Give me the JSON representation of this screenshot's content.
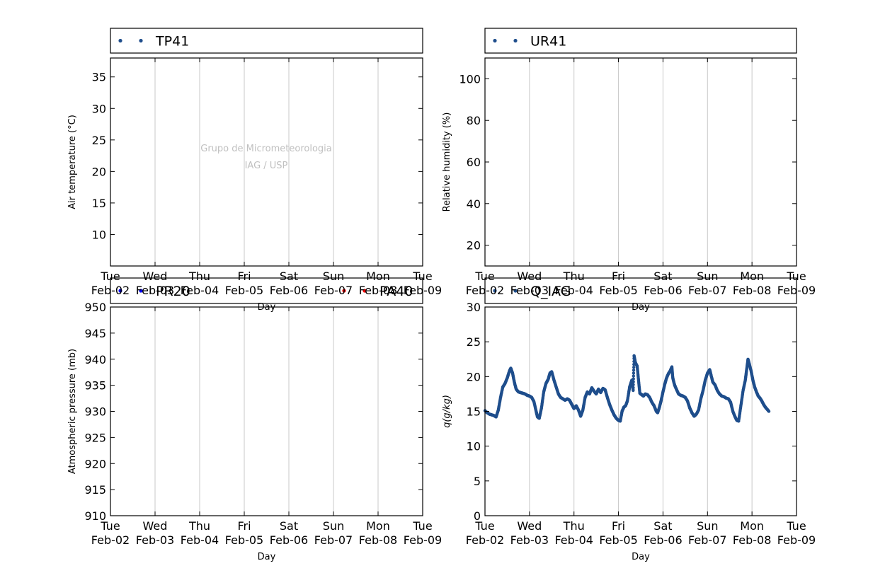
{
  "x_ticks": {
    "days": [
      "Tue",
      "Wed",
      "Thu",
      "Fri",
      "Sat",
      "Sun",
      "Mon",
      "Tue"
    ],
    "dates": [
      "Feb-02",
      "Feb-03",
      "Feb-04",
      "Feb-05",
      "Feb-06",
      "Feb-07",
      "Feb-08",
      "Feb-09"
    ]
  },
  "watermark": [
    "Grupo de Micrometeorologia",
    "IAG / USP"
  ],
  "colors": {
    "series_blue": "#1f4e8c",
    "pr20": "#0000ff",
    "pa40": "#ff0000",
    "grid": "#c8c8c8"
  },
  "chart_data": [
    {
      "type": "scatter",
      "panel": "top-left",
      "legend": [
        {
          "name": "TP41",
          "color": "#1f4e8c"
        }
      ],
      "ylabel": "Air temperature (°C)",
      "xlabel": "Day",
      "xlim": [
        "2016-02-02",
        "2016-02-09"
      ],
      "ylim": [
        5,
        38
      ],
      "yticks": [
        10,
        15,
        20,
        25,
        30,
        35
      ],
      "grid": "vertical",
      "series": [
        {
          "name": "TP41",
          "points": []
        }
      ]
    },
    {
      "type": "scatter",
      "panel": "top-right",
      "legend": [
        {
          "name": "UR41",
          "color": "#1f4e8c"
        }
      ],
      "ylabel": "Relative humidity (%)",
      "xlabel": "Day",
      "xlim": [
        "2016-02-02",
        "2016-02-09"
      ],
      "ylim": [
        10,
        110
      ],
      "yticks": [
        20,
        40,
        60,
        80,
        100
      ],
      "grid": "vertical",
      "series": [
        {
          "name": "UR41",
          "points": []
        }
      ]
    },
    {
      "type": "scatter",
      "panel": "bottom-left",
      "legend": [
        {
          "name": "PR20",
          "color": "#0000ff"
        },
        {
          "name": "PA40",
          "color": "#ff0000"
        }
      ],
      "ylabel": "Atmospheric pressure (mb)",
      "xlabel": "Day",
      "xlim": [
        "2016-02-02",
        "2016-02-09"
      ],
      "ylim": [
        910,
        950
      ],
      "yticks": [
        910,
        915,
        920,
        925,
        930,
        935,
        940,
        945,
        950
      ],
      "grid": "vertical",
      "series": [
        {
          "name": "PR20",
          "points": []
        },
        {
          "name": "PA40",
          "points": []
        }
      ]
    },
    {
      "type": "scatter",
      "panel": "bottom-right",
      "legend": [
        {
          "name": "Q_IAG",
          "color": "#1f4e8c"
        }
      ],
      "ylabel": "q(g/kg)",
      "xlabel": "Day",
      "xlim": [
        "2016-02-02",
        "2016-02-09"
      ],
      "ylim": [
        0,
        30
      ],
      "yticks": [
        0,
        5,
        10,
        15,
        20,
        25,
        30
      ],
      "grid": "vertical",
      "series": [
        {
          "name": "Q_IAG",
          "x_unit": "days since Feb-02 00:00",
          "points": [
            [
              0.0,
              15.1
            ],
            [
              0.05,
              14.8
            ],
            [
              0.1,
              14.6
            ],
            [
              0.15,
              14.5
            ],
            [
              0.2,
              14.4
            ],
            [
              0.25,
              14.2
            ],
            [
              0.3,
              15.2
            ],
            [
              0.35,
              17.0
            ],
            [
              0.4,
              18.5
            ],
            [
              0.45,
              19.0
            ],
            [
              0.5,
              19.8
            ],
            [
              0.55,
              20.8
            ],
            [
              0.58,
              21.2
            ],
            [
              0.62,
              20.5
            ],
            [
              0.66,
              19.2
            ],
            [
              0.7,
              18.2
            ],
            [
              0.75,
              17.8
            ],
            [
              0.8,
              17.7
            ],
            [
              0.85,
              17.6
            ],
            [
              0.9,
              17.5
            ],
            [
              0.95,
              17.3
            ],
            [
              1.0,
              17.2
            ],
            [
              1.05,
              17.0
            ],
            [
              1.1,
              16.4
            ],
            [
              1.15,
              15.0
            ],
            [
              1.18,
              14.2
            ],
            [
              1.22,
              14.0
            ],
            [
              1.27,
              15.5
            ],
            [
              1.32,
              17.8
            ],
            [
              1.37,
              19.0
            ],
            [
              1.42,
              19.6
            ],
            [
              1.46,
              20.5
            ],
            [
              1.5,
              20.7
            ],
            [
              1.55,
              19.5
            ],
            [
              1.6,
              18.5
            ],
            [
              1.65,
              17.5
            ],
            [
              1.7,
              17.0
            ],
            [
              1.75,
              16.8
            ],
            [
              1.8,
              16.6
            ],
            [
              1.85,
              16.8
            ],
            [
              1.9,
              16.6
            ],
            [
              1.95,
              16.0
            ],
            [
              2.0,
              15.4
            ],
            [
              2.05,
              15.8
            ],
            [
              2.1,
              15.2
            ],
            [
              2.15,
              14.3
            ],
            [
              2.2,
              15.2
            ],
            [
              2.25,
              17.0
            ],
            [
              2.3,
              17.8
            ],
            [
              2.35,
              17.5
            ],
            [
              2.4,
              18.4
            ],
            [
              2.45,
              17.9
            ],
            [
              2.5,
              17.5
            ],
            [
              2.55,
              18.2
            ],
            [
              2.6,
              17.7
            ],
            [
              2.65,
              18.3
            ],
            [
              2.7,
              18.1
            ],
            [
              2.75,
              17.0
            ],
            [
              2.8,
              16.0
            ],
            [
              2.85,
              15.2
            ],
            [
              2.9,
              14.5
            ],
            [
              2.95,
              14.0
            ],
            [
              3.0,
              13.7
            ],
            [
              3.04,
              13.6
            ],
            [
              3.08,
              15.0
            ],
            [
              3.12,
              15.6
            ],
            [
              3.16,
              15.8
            ],
            [
              3.2,
              16.5
            ],
            [
              3.25,
              18.5
            ],
            [
              3.3,
              19.5
            ],
            [
              3.33,
              18.0
            ],
            [
              3.35,
              23.0
            ],
            [
              3.38,
              22.0
            ],
            [
              3.42,
              21.5
            ],
            [
              3.45,
              19.5
            ],
            [
              3.48,
              17.6
            ],
            [
              3.52,
              17.4
            ],
            [
              3.56,
              17.2
            ],
            [
              3.6,
              17.5
            ],
            [
              3.65,
              17.4
            ],
            [
              3.7,
              17.0
            ],
            [
              3.75,
              16.3
            ],
            [
              3.8,
              15.8
            ],
            [
              3.85,
              15.0
            ],
            [
              3.88,
              14.8
            ],
            [
              3.92,
              15.6
            ],
            [
              3.96,
              16.6
            ],
            [
              4.0,
              17.8
            ],
            [
              4.04,
              18.9
            ],
            [
              4.08,
              19.8
            ],
            [
              4.12,
              20.4
            ],
            [
              4.16,
              20.8
            ],
            [
              4.2,
              21.4
            ],
            [
              4.22,
              19.8
            ],
            [
              4.26,
              18.8
            ],
            [
              4.3,
              18.2
            ],
            [
              4.35,
              17.5
            ],
            [
              4.4,
              17.3
            ],
            [
              4.45,
              17.2
            ],
            [
              4.5,
              17.0
            ],
            [
              4.55,
              16.5
            ],
            [
              4.6,
              15.5
            ],
            [
              4.65,
              14.8
            ],
            [
              4.7,
              14.3
            ],
            [
              4.75,
              14.6
            ],
            [
              4.8,
              15.2
            ],
            [
              4.85,
              16.8
            ],
            [
              4.9,
              18.0
            ],
            [
              4.95,
              19.5
            ],
            [
              5.0,
              20.5
            ],
            [
              5.05,
              21.0
            ],
            [
              5.08,
              20.2
            ],
            [
              5.12,
              19.2
            ],
            [
              5.17,
              18.8
            ],
            [
              5.22,
              18.0
            ],
            [
              5.27,
              17.5
            ],
            [
              5.32,
              17.2
            ],
            [
              5.37,
              17.1
            ],
            [
              5.42,
              16.9
            ],
            [
              5.47,
              16.8
            ],
            [
              5.52,
              16.3
            ],
            [
              5.57,
              15.0
            ],
            [
              5.62,
              14.2
            ],
            [
              5.66,
              13.7
            ],
            [
              5.7,
              13.6
            ],
            [
              5.75,
              15.8
            ],
            [
              5.8,
              18.0
            ],
            [
              5.85,
              19.5
            ],
            [
              5.88,
              21.0
            ],
            [
              5.91,
              22.5
            ],
            [
              5.94,
              21.8
            ],
            [
              5.98,
              20.8
            ],
            [
              6.02,
              19.5
            ],
            [
              6.06,
              18.5
            ],
            [
              6.1,
              17.8
            ],
            [
              6.14,
              17.2
            ],
            [
              6.18,
              16.9
            ],
            [
              6.22,
              16.5
            ],
            [
              6.26,
              16.0
            ],
            [
              6.3,
              15.6
            ],
            [
              6.34,
              15.3
            ],
            [
              6.38,
              15.0
            ]
          ]
        }
      ]
    }
  ]
}
